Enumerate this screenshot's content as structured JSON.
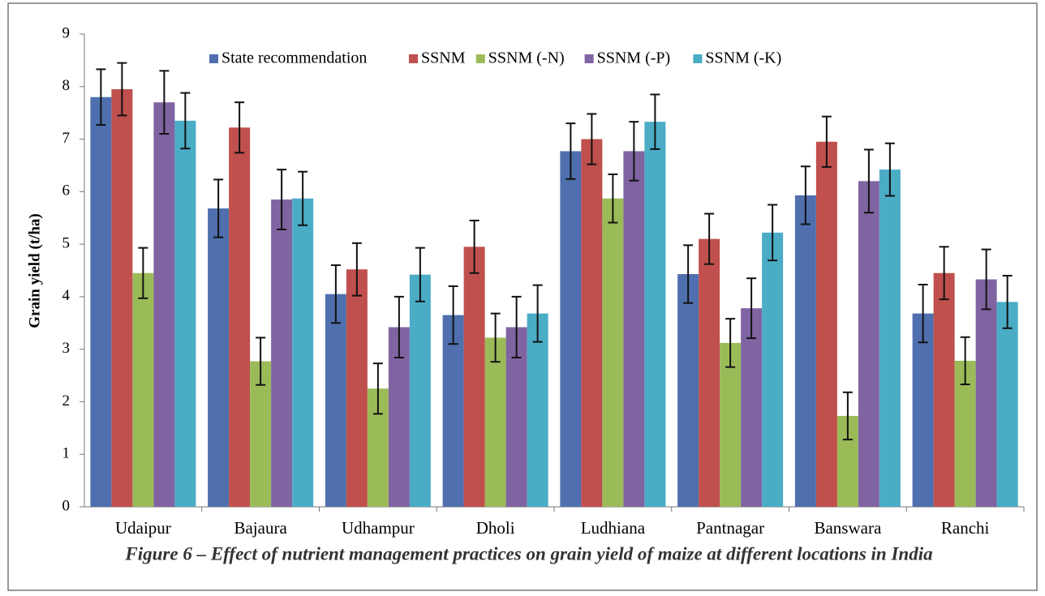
{
  "chart_data": {
    "type": "bar",
    "caption": "Figure 6 – Effect of nutrient management practices on grain yield of maize at different locations in India",
    "y_label": "Grain yield (t/ha)",
    "categories": [
      "Udaipur",
      "Bajaura",
      "Udhampur",
      "Dholi",
      "Ludhiana",
      "Pantnagar",
      "Banswara",
      "Ranchi"
    ],
    "series": [
      {
        "name": "State recommendation",
        "color": "#4f6fae",
        "values": [
          7.8,
          5.68,
          4.05,
          3.65,
          6.77,
          4.43,
          5.93,
          3.68
        ],
        "errors": [
          0.53,
          0.55,
          0.55,
          0.55,
          0.53,
          0.55,
          0.55,
          0.55
        ]
      },
      {
        "name": "SSNM",
        "color": "#c0504d",
        "values": [
          7.95,
          7.22,
          4.52,
          4.95,
          7.0,
          5.1,
          6.95,
          4.45
        ],
        "errors": [
          0.5,
          0.48,
          0.5,
          0.5,
          0.48,
          0.48,
          0.48,
          0.5
        ]
      },
      {
        "name": "SSNM (-N)",
        "color": "#9bbb59",
        "values": [
          4.45,
          2.77,
          2.25,
          3.22,
          5.87,
          3.12,
          1.73,
          2.78
        ],
        "errors": [
          0.48,
          0.45,
          0.48,
          0.46,
          0.46,
          0.46,
          0.45,
          0.45
        ]
      },
      {
        "name": "SSNM (-P)",
        "color": "#8064a2",
        "values": [
          7.7,
          5.85,
          3.42,
          3.42,
          6.77,
          3.78,
          6.2,
          4.33
        ],
        "errors": [
          0.6,
          0.57,
          0.58,
          0.58,
          0.56,
          0.57,
          0.6,
          0.57
        ]
      },
      {
        "name": "SSNM (-K)",
        "color": "#4bacc6",
        "values": [
          7.35,
          5.87,
          4.42,
          3.68,
          7.33,
          5.22,
          6.42,
          3.9
        ],
        "errors": [
          0.53,
          0.51,
          0.51,
          0.54,
          0.52,
          0.53,
          0.5,
          0.5
        ]
      }
    ],
    "ylim": [
      0,
      9
    ],
    "yticks": [
      0,
      1,
      2,
      3,
      4,
      5,
      6,
      7,
      8,
      9
    ],
    "grid": false,
    "legend": "top"
  }
}
